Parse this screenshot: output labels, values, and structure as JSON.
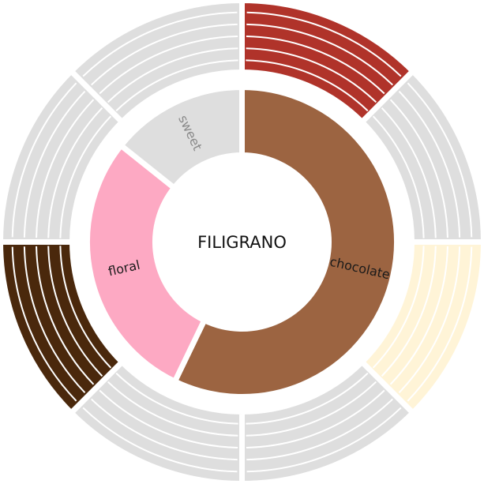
{
  "chart_data": {
    "type": "sunburst",
    "center_label": "FILIGRANO",
    "inner_ring": [
      {
        "label": "chocolate",
        "value": 180,
        "color": "#9c6441",
        "label_color": "#1a1a1a"
      },
      {
        "label": "floral",
        "value": 90,
        "color": "#fda9c3",
        "label_color": "#1a1a1a"
      },
      {
        "label": "sweet",
        "value": 45,
        "color": "#dedede",
        "label_color": "#8a8a8a"
      }
    ],
    "outer_ring": [
      {
        "value": 45,
        "color": "#dedede"
      },
      {
        "value": 45,
        "color": "#b0332a"
      },
      {
        "value": 45,
        "color": "#dedede"
      },
      {
        "value": 45,
        "color": "#fff4d7"
      },
      {
        "value": 45,
        "color": "#dedede"
      },
      {
        "value": 45,
        "color": "#dedede"
      },
      {
        "value": 45,
        "color": "#4a280c"
      },
      {
        "value": 45,
        "color": "#dedede"
      }
    ]
  }
}
